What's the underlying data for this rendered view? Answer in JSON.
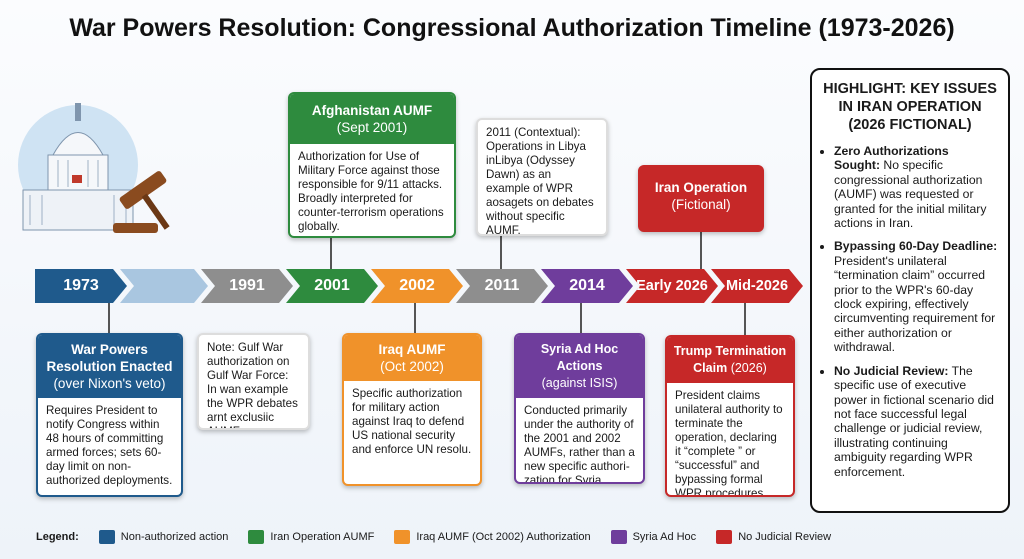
{
  "title": "War Powers Resolution: Congressional Authorization Timeline (1973-2026)",
  "timeline": [
    "1973",
    "1991",
    "2001",
    "2002",
    "2011",
    "2014",
    "Early 2026",
    "Mid-2026"
  ],
  "cards": {
    "afghanistan": {
      "title": "Afghanistan AUMF",
      "subtitle": "(Sept 2001)",
      "body": "Authorization for Use of Military Force against those responsible for 9/11 attacks. Broadly interpreted for counter-terrorism operations globally."
    },
    "libya": {
      "body": "2011 (Contextual): Operations in Libya inLibya (Odyssey Dawn) as an example of WPR aosagets on debates without specific AUMF."
    },
    "iran": {
      "title": "Iran Operation",
      "subtitle": "(Fictional)"
    },
    "wpr": {
      "title": "War Powers Resolution Enacted",
      "subtitle": "(over Nixon's veto)",
      "body": "Requires President to notify Congress within 48 hours of committing armed forces; sets 60-day limit on non-authorized deployments."
    },
    "gulf": {
      "body": "Note: Gulf War authorization on Gulf War Force: In wan example the WPR debates arnt exclusiic AUMF."
    },
    "iraq": {
      "title": "Iraq AUMF",
      "subtitle": "(Oct 2002)",
      "body": "Specific authorization for military action against Iraq to defend US national security and enforce UN resolu."
    },
    "syria": {
      "title": "Syria Ad Hoc Actions",
      "subtitle": "(against ISIS)",
      "body": "Conducted primarily under the authority of the 2001 and 2002 AUMFs, rather than a new specific authori-zation for Syria."
    },
    "trump": {
      "title": "Trump Termination Claim",
      "subtitle": "(2026)",
      "body": "President claims unilateral authority to terminate the operation, declaring it “complete ” or “successful” and bypassing formal WPR procedures."
    }
  },
  "highlight": {
    "title": "HIGHLIGHT: KEY ISSUES IN IRAN OPERATION (2026 FICTIONAL)",
    "items": [
      {
        "lead": "Zero Authorizations Sought:",
        "text": "No specific congressional authorization (AUMF) was requested or granted for the initial military actions in Iran."
      },
      {
        "lead": "Bypassing 60-Day Deadline:",
        "text": "President's unilateral “termination claim” occurred prior to the WPR's 60-day clock expiring, effectively circumventing requirement for either authorization or withdrawal."
      },
      {
        "lead": "No Judicial Review:",
        "text": "The specific use of executive power in fictional scenario did not face successful legal challenge or judicial review, illustrating continuing ambiguity regarding WPR enforcement."
      }
    ]
  },
  "legend": {
    "label": "Legend:",
    "items": [
      "Non-authorized action",
      "Iran Operation AUMF",
      "Iraq AUMF (Oct 2002) Authorization",
      "Syria Ad Hoc",
      "No Judicial Review"
    ]
  }
}
